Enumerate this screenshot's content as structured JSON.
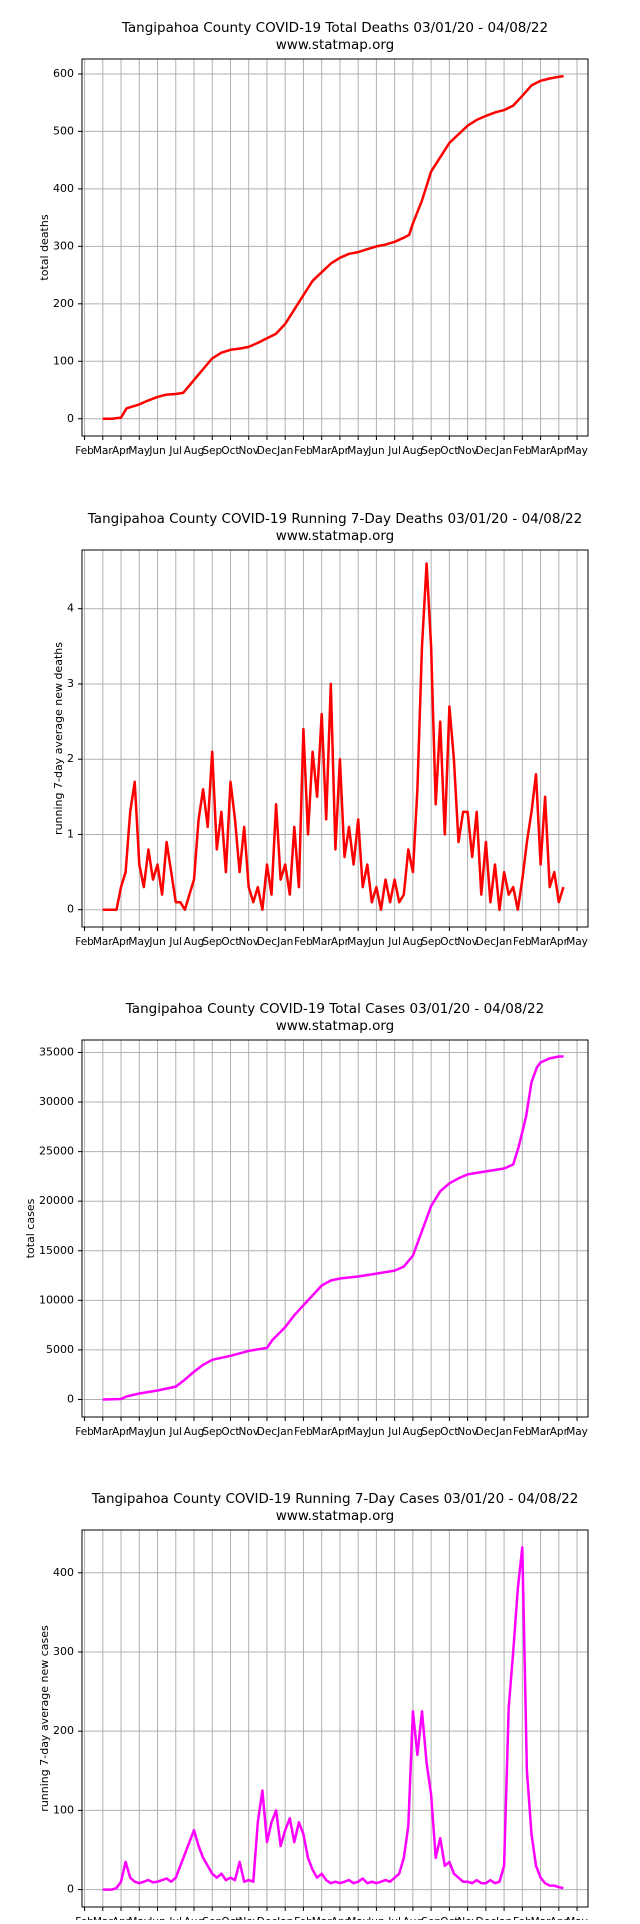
{
  "chart_data": [
    {
      "type": "line",
      "title": "Tangipahoa County COVID-19 Total Deaths 03/01/20 - 04/08/22",
      "subtitle": "www.statmap.org",
      "ylabel": "total deaths",
      "color": "#ff0000",
      "grid": true,
      "xlim": [
        -0.14,
        27.6
      ],
      "ylim": [
        -30,
        626
      ],
      "yticks": [
        0,
        100,
        200,
        300,
        400,
        500,
        600
      ],
      "xticks": [
        {
          "value": 0,
          "label": "Feb"
        },
        {
          "value": 1,
          "label": "Mar"
        },
        {
          "value": 2,
          "label": "Apr"
        },
        {
          "value": 3,
          "label": "May"
        },
        {
          "value": 4,
          "label": "Jun"
        },
        {
          "value": 5,
          "label": "Jul"
        },
        {
          "value": 6,
          "label": "Aug"
        },
        {
          "value": 7,
          "label": "Sep"
        },
        {
          "value": 8,
          "label": "Oct"
        },
        {
          "value": 9,
          "label": "Nov"
        },
        {
          "value": 10,
          "label": "Dec"
        },
        {
          "value": 11,
          "label": "Jan"
        },
        {
          "value": 12,
          "label": "Feb"
        },
        {
          "value": 13,
          "label": "Mar"
        },
        {
          "value": 14,
          "label": "Apr"
        },
        {
          "value": 15,
          "label": "May"
        },
        {
          "value": 16,
          "label": "Jun"
        },
        {
          "value": 17,
          "label": "Jul"
        },
        {
          "value": 18,
          "label": "Aug"
        },
        {
          "value": 19,
          "label": "Sep"
        },
        {
          "value": 20,
          "label": "Oct"
        },
        {
          "value": 21,
          "label": "Nov"
        },
        {
          "value": 22,
          "label": "Dec"
        },
        {
          "value": 23,
          "label": "Jan"
        },
        {
          "value": 24,
          "label": "Feb"
        },
        {
          "value": 25,
          "label": "Mar"
        },
        {
          "value": 26,
          "label": "Apr"
        },
        {
          "value": 27,
          "label": "May"
        }
      ],
      "x": [
        1,
        1.5,
        2,
        2.3,
        3,
        3.5,
        4,
        4.5,
        5,
        5.4,
        5.8,
        6.2,
        6.6,
        7,
        7.5,
        8,
        8.5,
        9,
        9.5,
        10,
        10.5,
        11,
        11.5,
        12,
        12.5,
        13,
        13.5,
        14,
        14.5,
        15,
        15.5,
        16,
        16.5,
        17,
        17.5,
        17.8,
        18,
        18.5,
        19,
        19.5,
        20,
        20.5,
        21,
        21.5,
        22,
        22.5,
        23,
        23.5,
        24,
        24.5,
        25,
        25.5,
        26,
        26.26
      ],
      "values": [
        0,
        0,
        2,
        18,
        25,
        32,
        38,
        42,
        43,
        45,
        60,
        75,
        90,
        105,
        115,
        120,
        122,
        125,
        132,
        140,
        148,
        165,
        190,
        215,
        240,
        255,
        270,
        280,
        287,
        290,
        295,
        300,
        303,
        308,
        315,
        320,
        340,
        380,
        430,
        455,
        480,
        495,
        510,
        520,
        527,
        533,
        537,
        545,
        562,
        580,
        588,
        592,
        595,
        596
      ]
    },
    {
      "type": "line",
      "title": "Tangipahoa County COVID-19 Running 7-Day Deaths 03/01/20 - 04/08/22",
      "subtitle": "www.statmap.org",
      "ylabel": "running 7-day average new deaths",
      "color": "#ff0000",
      "grid": true,
      "xlim": [
        -0.14,
        27.6
      ],
      "ylim": [
        -0.23,
        4.78
      ],
      "yticks": [
        0,
        1,
        2,
        3,
        4
      ],
      "xticks": [
        {
          "value": 0,
          "label": "Feb"
        },
        {
          "value": 1,
          "label": "Mar"
        },
        {
          "value": 2,
          "label": "Apr"
        },
        {
          "value": 3,
          "label": "May"
        },
        {
          "value": 4,
          "label": "Jun"
        },
        {
          "value": 5,
          "label": "Jul"
        },
        {
          "value": 6,
          "label": "Aug"
        },
        {
          "value": 7,
          "label": "Sep"
        },
        {
          "value": 8,
          "label": "Oct"
        },
        {
          "value": 9,
          "label": "Nov"
        },
        {
          "value": 10,
          "label": "Dec"
        },
        {
          "value": 11,
          "label": "Jan"
        },
        {
          "value": 12,
          "label": "Feb"
        },
        {
          "value": 13,
          "label": "Mar"
        },
        {
          "value": 14,
          "label": "Apr"
        },
        {
          "value": 15,
          "label": "May"
        },
        {
          "value": 16,
          "label": "Jun"
        },
        {
          "value": 17,
          "label": "Jul"
        },
        {
          "value": 18,
          "label": "Aug"
        },
        {
          "value": 19,
          "label": "Sep"
        },
        {
          "value": 20,
          "label": "Oct"
        },
        {
          "value": 21,
          "label": "Nov"
        },
        {
          "value": 22,
          "label": "Dec"
        },
        {
          "value": 23,
          "label": "Jan"
        },
        {
          "value": 24,
          "label": "Feb"
        },
        {
          "value": 25,
          "label": "Mar"
        },
        {
          "value": 26,
          "label": "Apr"
        },
        {
          "value": 27,
          "label": "May"
        }
      ],
      "x": [
        1,
        1.25,
        1.5,
        1.75,
        2,
        2.25,
        2.5,
        2.75,
        3,
        3.25,
        3.5,
        3.75,
        4,
        4.25,
        4.5,
        4.75,
        5,
        5.25,
        5.5,
        5.75,
        6,
        6.25,
        6.5,
        6.75,
        7,
        7.25,
        7.5,
        7.75,
        8,
        8.25,
        8.5,
        8.75,
        9,
        9.25,
        9.5,
        9.75,
        10,
        10.25,
        10.5,
        10.75,
        11,
        11.25,
        11.5,
        11.75,
        12,
        12.25,
        12.5,
        12.75,
        13,
        13.25,
        13.5,
        13.75,
        14,
        14.25,
        14.5,
        14.75,
        15,
        15.25,
        15.5,
        15.75,
        16,
        16.25,
        16.5,
        16.75,
        17,
        17.25,
        17.5,
        17.75,
        18,
        18.25,
        18.5,
        18.75,
        19,
        19.25,
        19.5,
        19.75,
        20,
        20.25,
        20.5,
        20.75,
        21,
        21.25,
        21.5,
        21.75,
        22,
        22.25,
        22.5,
        22.75,
        23,
        23.25,
        23.5,
        23.75,
        24,
        24.25,
        24.5,
        24.75,
        25,
        25.25,
        25.5,
        25.75,
        26,
        26.25
      ],
      "values": [
        0,
        0,
        0,
        0,
        0.3,
        0.5,
        1.3,
        1.7,
        0.6,
        0.3,
        0.8,
        0.4,
        0.6,
        0.2,
        0.9,
        0.5,
        0.1,
        0.1,
        0,
        0.2,
        0.4,
        1.2,
        1.6,
        1.1,
        2.1,
        0.8,
        1.3,
        0.5,
        1.7,
        1.2,
        0.5,
        1.1,
        0.3,
        0.1,
        0.3,
        0,
        0.6,
        0.2,
        1.4,
        0.4,
        0.6,
        0.2,
        1.1,
        0.3,
        2.4,
        1.0,
        2.1,
        1.5,
        2.6,
        1.2,
        3.0,
        0.8,
        2.0,
        0.7,
        1.1,
        0.6,
        1.2,
        0.3,
        0.6,
        0.1,
        0.3,
        0,
        0.4,
        0.1,
        0.4,
        0.1,
        0.2,
        0.8,
        0.5,
        1.6,
        3.5,
        4.6,
        3.5,
        1.4,
        2.5,
        1.0,
        2.7,
        2.0,
        0.9,
        1.3,
        1.3,
        0.7,
        1.3,
        0.2,
        0.9,
        0.1,
        0.6,
        0,
        0.5,
        0.2,
        0.3,
        0,
        0.4,
        0.9,
        1.3,
        1.8,
        0.6,
        1.5,
        0.3,
        0.5,
        0.1,
        0.3
      ]
    },
    {
      "type": "line",
      "title": "Tangipahoa County COVID-19 Total Cases 03/01/20 - 04/08/22",
      "subtitle": "www.statmap.org",
      "ylabel": "total cases",
      "color": "#ff00ff",
      "grid": true,
      "xlim": [
        -0.14,
        27.6
      ],
      "ylim": [
        -1770,
        36260
      ],
      "yticks": [
        0,
        5000,
        10000,
        15000,
        20000,
        25000,
        30000,
        35000
      ],
      "xticks": [
        {
          "value": 0,
          "label": "Feb"
        },
        {
          "value": 1,
          "label": "Mar"
        },
        {
          "value": 2,
          "label": "Apr"
        },
        {
          "value": 3,
          "label": "May"
        },
        {
          "value": 4,
          "label": "Jun"
        },
        {
          "value": 5,
          "label": "Jul"
        },
        {
          "value": 6,
          "label": "Aug"
        },
        {
          "value": 7,
          "label": "Sep"
        },
        {
          "value": 8,
          "label": "Oct"
        },
        {
          "value": 9,
          "label": "Nov"
        },
        {
          "value": 10,
          "label": "Dec"
        },
        {
          "value": 11,
          "label": "Jan"
        },
        {
          "value": 12,
          "label": "Feb"
        },
        {
          "value": 13,
          "label": "Mar"
        },
        {
          "value": 14,
          "label": "Apr"
        },
        {
          "value": 15,
          "label": "May"
        },
        {
          "value": 16,
          "label": "Jun"
        },
        {
          "value": 17,
          "label": "Jul"
        },
        {
          "value": 18,
          "label": "Aug"
        },
        {
          "value": 19,
          "label": "Sep"
        },
        {
          "value": 20,
          "label": "Oct"
        },
        {
          "value": 21,
          "label": "Nov"
        },
        {
          "value": 22,
          "label": "Dec"
        },
        {
          "value": 23,
          "label": "Jan"
        },
        {
          "value": 24,
          "label": "Feb"
        },
        {
          "value": 25,
          "label": "Mar"
        },
        {
          "value": 26,
          "label": "Apr"
        },
        {
          "value": 27,
          "label": "May"
        }
      ],
      "x": [
        1,
        2,
        2.3,
        3,
        4,
        5,
        5.5,
        6,
        6.5,
        7,
        8,
        9,
        10,
        10.3,
        11,
        11.5,
        12,
        12.5,
        13,
        13.5,
        14,
        15,
        16,
        17,
        17.5,
        18,
        18.5,
        19,
        19.5,
        20,
        20.5,
        21,
        22,
        23,
        23.5,
        23.8,
        24.2,
        24.5,
        24.8,
        25,
        25.5,
        26,
        26.26
      ],
      "values": [
        0,
        50,
        300,
        600,
        900,
        1300,
        2000,
        2800,
        3500,
        4000,
        4400,
        4900,
        5200,
        6000,
        7300,
        8500,
        9500,
        10500,
        11500,
        12000,
        12200,
        12400,
        12700,
        13000,
        13400,
        14500,
        17000,
        19500,
        21000,
        21800,
        22300,
        22700,
        23000,
        23300,
        23700,
        25500,
        28500,
        32000,
        33500,
        34000,
        34400,
        34600,
        34600
      ]
    },
    {
      "type": "line",
      "title": "Tangipahoa County COVID-19 Running 7-Day Cases 03/01/20 - 04/08/22",
      "subtitle": "www.statmap.org",
      "ylabel": "running 7-day average new cases",
      "color": "#ff00ff",
      "grid": true,
      "xlim": [
        -0.14,
        27.6
      ],
      "ylim": [
        -22,
        454
      ],
      "yticks": [
        0,
        100,
        200,
        300,
        400
      ],
      "xticks": [
        {
          "value": 0,
          "label": "Feb"
        },
        {
          "value": 1,
          "label": "Mar"
        },
        {
          "value": 2,
          "label": "Apr"
        },
        {
          "value": 3,
          "label": "May"
        },
        {
          "value": 4,
          "label": "Jun"
        },
        {
          "value": 5,
          "label": "Jul"
        },
        {
          "value": 6,
          "label": "Aug"
        },
        {
          "value": 7,
          "label": "Sep"
        },
        {
          "value": 8,
          "label": "Oct"
        },
        {
          "value": 9,
          "label": "Nov"
        },
        {
          "value": 10,
          "label": "Dec"
        },
        {
          "value": 11,
          "label": "Jan"
        },
        {
          "value": 12,
          "label": "Feb"
        },
        {
          "value": 13,
          "label": "Mar"
        },
        {
          "value": 14,
          "label": "Apr"
        },
        {
          "value": 15,
          "label": "May"
        },
        {
          "value": 16,
          "label": "Jun"
        },
        {
          "value": 17,
          "label": "Jul"
        },
        {
          "value": 18,
          "label": "Aug"
        },
        {
          "value": 19,
          "label": "Sep"
        },
        {
          "value": 20,
          "label": "Oct"
        },
        {
          "value": 21,
          "label": "Nov"
        },
        {
          "value": 22,
          "label": "Dec"
        },
        {
          "value": 23,
          "label": "Jan"
        },
        {
          "value": 24,
          "label": "Feb"
        },
        {
          "value": 25,
          "label": "Mar"
        },
        {
          "value": 26,
          "label": "Apr"
        },
        {
          "value": 27,
          "label": "May"
        }
      ],
      "x": [
        1,
        1.25,
        1.5,
        1.75,
        2,
        2.25,
        2.5,
        2.75,
        3,
        3.25,
        3.5,
        3.75,
        4,
        4.25,
        4.5,
        4.75,
        5,
        5.25,
        5.5,
        5.75,
        6,
        6.25,
        6.5,
        6.75,
        7,
        7.25,
        7.5,
        7.75,
        8,
        8.25,
        8.5,
        8.75,
        9,
        9.25,
        9.5,
        9.75,
        10,
        10.25,
        10.5,
        10.75,
        11,
        11.25,
        11.5,
        11.75,
        12,
        12.25,
        12.5,
        12.75,
        13,
        13.25,
        13.5,
        13.75,
        14,
        14.25,
        14.5,
        14.75,
        15,
        15.25,
        15.5,
        15.75,
        16,
        16.25,
        16.5,
        16.75,
        17,
        17.25,
        17.5,
        17.75,
        18,
        18.25,
        18.5,
        18.75,
        19,
        19.25,
        19.5,
        19.75,
        20,
        20.25,
        20.5,
        20.75,
        21,
        21.25,
        21.5,
        21.75,
        22,
        22.25,
        22.5,
        22.75,
        23,
        23.25,
        23.5,
        23.75,
        24,
        24.25,
        24.5,
        24.75,
        25,
        25.25,
        25.5,
        25.75,
        26,
        26.25
      ],
      "values": [
        0,
        0,
        0,
        2,
        10,
        35,
        15,
        10,
        8,
        10,
        12,
        9,
        10,
        12,
        14,
        10,
        15,
        30,
        45,
        60,
        75,
        55,
        40,
        30,
        20,
        15,
        20,
        12,
        15,
        12,
        35,
        10,
        12,
        10,
        85,
        125,
        60,
        85,
        100,
        55,
        75,
        90,
        60,
        85,
        70,
        40,
        25,
        15,
        20,
        12,
        8,
        10,
        8,
        10,
        12,
        8,
        10,
        14,
        8,
        10,
        8,
        10,
        12,
        10,
        15,
        20,
        40,
        80,
        225,
        170,
        225,
        160,
        120,
        40,
        65,
        30,
        35,
        20,
        15,
        10,
        10,
        8,
        12,
        8,
        8,
        12,
        8,
        10,
        30,
        230,
        300,
        380,
        432,
        150,
        70,
        30,
        15,
        8,
        5,
        5,
        3,
        2
      ]
    }
  ]
}
